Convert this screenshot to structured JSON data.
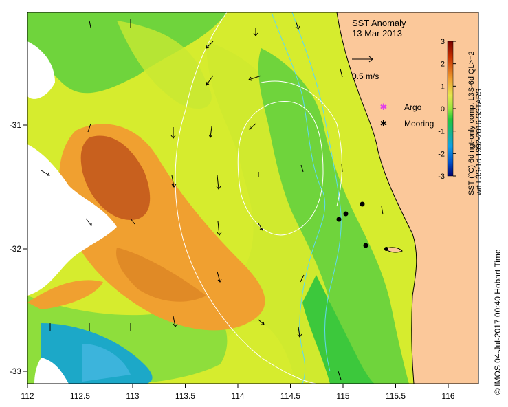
{
  "title": "SST Anomaly",
  "date": "13 Mar 2013",
  "velocity_scale_label": "0.5 m/s",
  "legend": {
    "argo_label": "Argo",
    "mooring_label": "Mooring",
    "argo_color": "#e23fe8",
    "mooring_color": "#000000"
  },
  "colorbar": {
    "title_line1": "SST (°C) 6d ngt-only comp. L3S-6d QL>=2",
    "title_line2": "wrt L3S-1d 1992-2016 SSTARS",
    "ticks": [
      "3",
      "2",
      "1",
      "0",
      "-1",
      "-2",
      "-3"
    ],
    "colors": [
      "#7a0000",
      "#c83200",
      "#f0a030",
      "#e6e64e",
      "#9be63c",
      "#22c83c",
      "#16b48c",
      "#10a0e6",
      "#0050c8",
      "#00006e"
    ]
  },
  "x_ticks": [
    "112",
    "112.5",
    "113",
    "113.5",
    "114",
    "114.5",
    "115",
    "115.5",
    "116"
  ],
  "y_ticks": [
    "-31",
    "-32",
    "-33"
  ],
  "credit": "© IMOS 04-Jul-2017 00:40 Hobart Time",
  "colors": {
    "land": "#fbc89a",
    "ocean_yellow": "#d6ec2e",
    "ocean_green": "#6fd43c",
    "anomaly_orange": "#f0a030",
    "anomaly_brown": "#c8601e",
    "cold_blue": "#1ca8c8",
    "contour_white": "#ffffff",
    "isobath_cyan": "#5fd8f0"
  },
  "moorings": [
    {
      "lon": 115.2,
      "lat": -31.65
    },
    {
      "lon": 115.05,
      "lat": -31.72
    },
    {
      "lon": 114.97,
      "lat": -31.75
    },
    {
      "lon": 115.22,
      "lat": -31.98
    },
    {
      "lon": 115.42,
      "lat": -32.0
    }
  ]
}
